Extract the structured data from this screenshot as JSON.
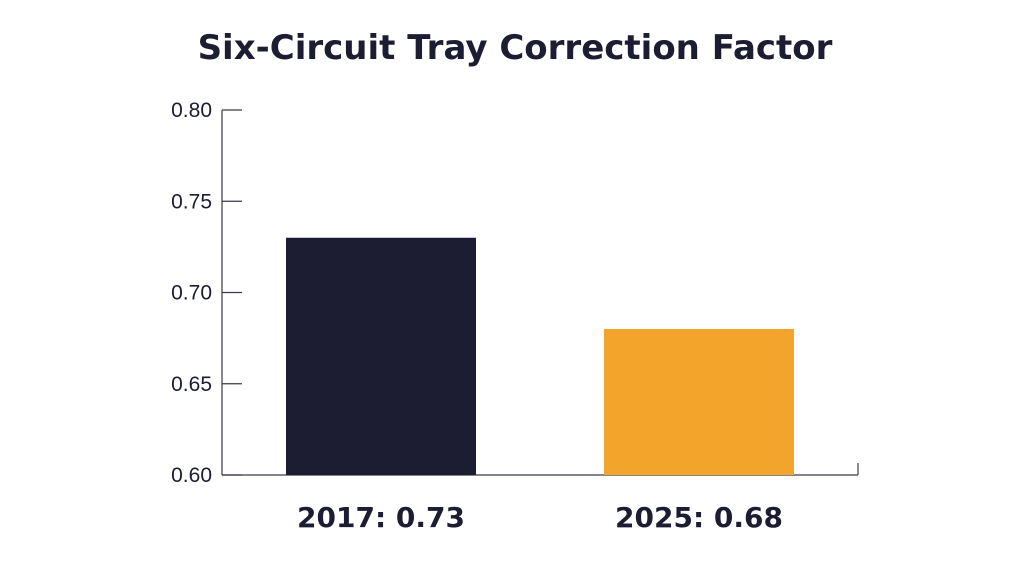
{
  "chart_data": {
    "type": "bar",
    "title": "Six-Circuit Tray Correction Factor",
    "categories": [
      "2017: 0.73",
      "2025: 0.68"
    ],
    "values": [
      0.73,
      0.68
    ],
    "colors": [
      "#1c1c33",
      "#f2a42b"
    ],
    "xlabel": "",
    "ylabel": "",
    "ylim": [
      0.6,
      0.8
    ],
    "yticks": [
      "0.60",
      "0.65",
      "0.70",
      "0.75",
      "0.80"
    ],
    "grid": false,
    "legend": "none"
  }
}
